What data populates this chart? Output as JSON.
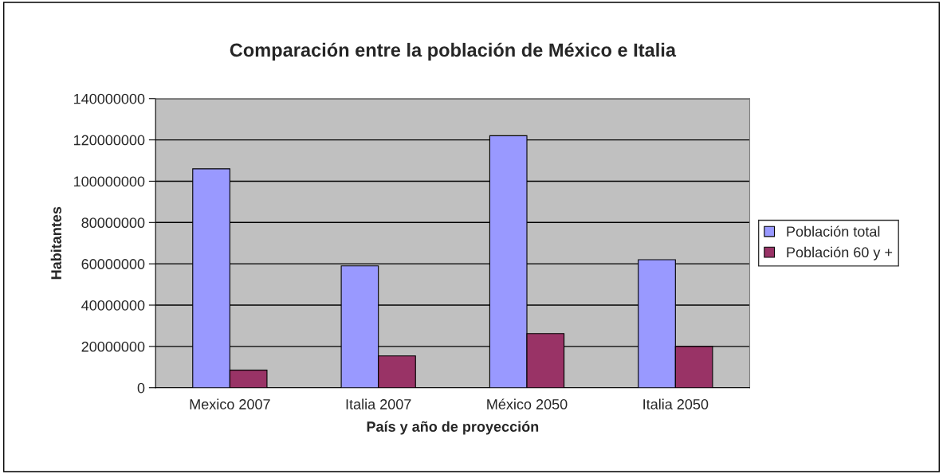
{
  "chart_data": {
    "type": "bar",
    "title": "Comparación entre la población de México e Italia",
    "xlabel": "País y año de proyección",
    "ylabel": "Habitantes",
    "categories": [
      "Mexico 2007",
      "Italia 2007",
      "México 2050",
      "Italia 2050"
    ],
    "series": [
      {
        "name": "Población total",
        "color": "#9999ff",
        "values": [
          106000000,
          59000000,
          122000000,
          62000000
        ]
      },
      {
        "name": "Población 60 y +",
        "color": "#993366",
        "values": [
          8500000,
          15400000,
          26200000,
          20000000
        ]
      }
    ],
    "ylim": [
      0,
      140000000
    ],
    "yticks": [
      0,
      20000000,
      40000000,
      60000000,
      80000000,
      100000000,
      120000000,
      140000000
    ],
    "grid": "y",
    "legend": "right"
  }
}
